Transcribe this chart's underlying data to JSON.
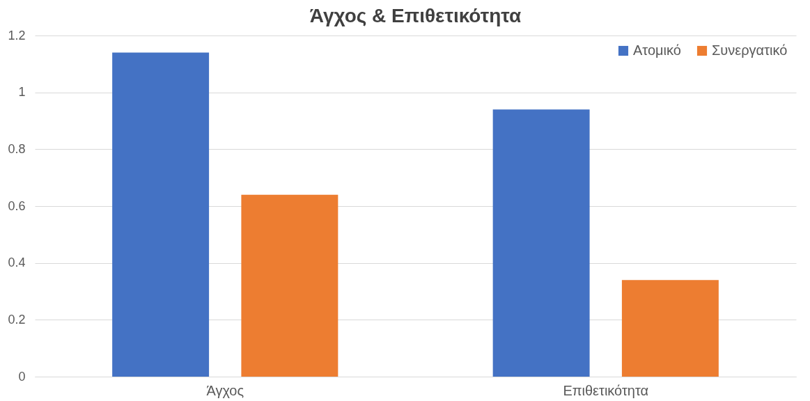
{
  "chart_data": {
    "type": "bar",
    "title": "Άγχος & Επιθετικότητα",
    "categories": [
      "Άγχος",
      "Επιθετικότητα"
    ],
    "series": [
      {
        "name": "Ατομικό",
        "color": "#4472c4",
        "values": [
          1.14,
          0.94
        ]
      },
      {
        "name": "Συνεργατικό",
        "color": "#ed7d31",
        "values": [
          0.64,
          0.34
        ]
      }
    ],
    "ylim": [
      0,
      1.2
    ],
    "yticks": [
      0,
      0.2,
      0.4,
      0.6,
      0.8,
      1,
      1.2
    ],
    "grid": "y",
    "legend": "top right"
  }
}
